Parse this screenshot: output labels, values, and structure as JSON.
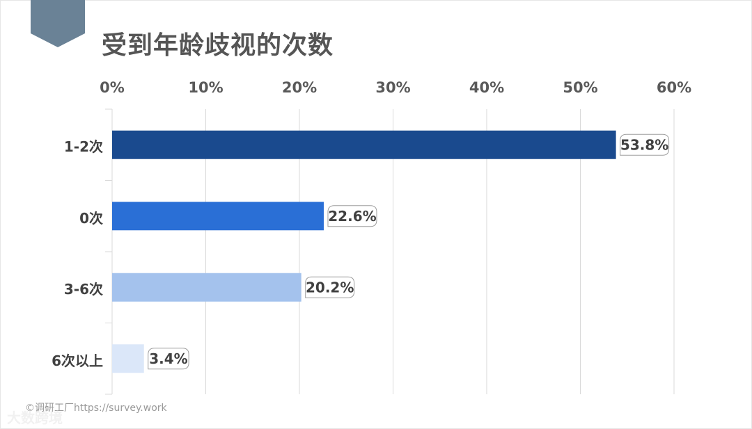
{
  "chart_data": {
    "type": "bar",
    "orientation": "horizontal",
    "title": "受到年龄歧视的次数",
    "categories": [
      "1-2次",
      "0次",
      "3-6次",
      "6次以上"
    ],
    "values": [
      53.8,
      22.6,
      20.2,
      3.4
    ],
    "value_labels": [
      "53.8%",
      "22.6%",
      "20.2%",
      "3.4%"
    ],
    "colors": [
      "#1a4a8e",
      "#2a6fd6",
      "#a4c2ed",
      "#dbe7f9"
    ],
    "xaxis_position": "top",
    "xlim": [
      0,
      60
    ],
    "xticks": [
      0,
      10,
      20,
      30,
      40,
      50,
      60
    ],
    "xtick_labels": [
      "0%",
      "10%",
      "20%",
      "30%",
      "40%",
      "50%",
      "60%"
    ],
    "grid": true,
    "xlabel": "",
    "ylabel": ""
  },
  "watermark": "©调研工厂https://survey.work",
  "watermark_brand": "大数跨境",
  "accent_color": "#6a8296"
}
